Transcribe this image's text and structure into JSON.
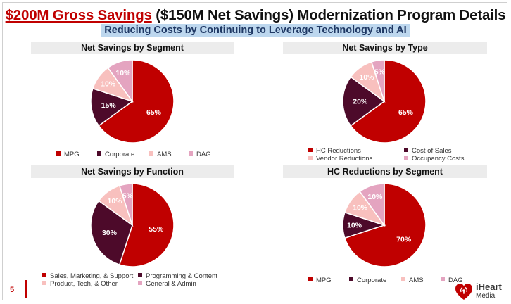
{
  "header": {
    "title_red": "$200M Gross Savings",
    "title_rest": " ($150M Net Savings) Modernization Program Details",
    "subtitle": "Reducing Costs by Continuing to Leverage Technology and AI"
  },
  "footer": {
    "page_number": "5",
    "logo_line1": "iHeart",
    "logo_line2": "Media"
  },
  "colors": {
    "dark_red": "#c00000",
    "plum": "#4d0a2a",
    "light_pink": "#f8c0be",
    "mauve": "#e4a4c0"
  },
  "chart_data": [
    {
      "type": "pie",
      "title": "Net Savings by Segment",
      "categories": [
        "MPG",
        "Corporate",
        "AMS",
        "DAG"
      ],
      "values": [
        65,
        15,
        10,
        10
      ],
      "labels": [
        "65%",
        "15%",
        "10%",
        "10%"
      ],
      "colors": [
        "#c00000",
        "#4d0a2a",
        "#f8c0be",
        "#e4a4c0"
      ]
    },
    {
      "type": "pie",
      "title": "Net Savings by Type",
      "categories": [
        "HC Reductions",
        "Cost of Sales",
        "Vendor Reductions",
        "Occupancy Costs"
      ],
      "values": [
        65,
        20,
        10,
        5
      ],
      "labels": [
        "65%",
        "20%",
        "10%",
        "5%"
      ],
      "colors": [
        "#c00000",
        "#4d0a2a",
        "#f8c0be",
        "#e4a4c0"
      ]
    },
    {
      "type": "pie",
      "title": "Net Savings by Function",
      "categories": [
        "Sales, Marketing, & Support",
        "Programming & Content",
        "Product, Tech, & Other",
        "General & Admin"
      ],
      "values": [
        55,
        30,
        10,
        5
      ],
      "labels": [
        "55%",
        "30%",
        "10%",
        "5%"
      ],
      "colors": [
        "#c00000",
        "#4d0a2a",
        "#f8c0be",
        "#e4a4c0"
      ]
    },
    {
      "type": "pie",
      "title": "HC Reductions by Segment",
      "categories": [
        "MPG",
        "Corporate",
        "AMS",
        "DAG"
      ],
      "values": [
        70,
        10,
        10,
        10
      ],
      "labels": [
        "70%",
        "10%",
        "10%",
        "10%"
      ],
      "colors": [
        "#c00000",
        "#4d0a2a",
        "#f8c0be",
        "#e4a4c0"
      ]
    }
  ]
}
